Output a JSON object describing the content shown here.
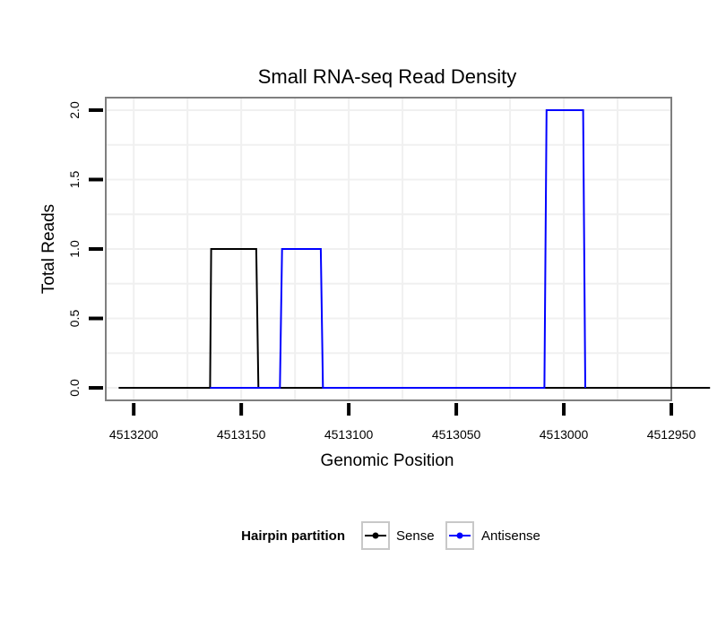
{
  "chart_data": {
    "type": "line",
    "title": "Small RNA-seq Read Density",
    "xlabel": "Genomic Position",
    "ylabel": "Total Reads",
    "xlim": [
      4513213,
      4512950
    ],
    "x_reversed": true,
    "ylim": [
      -0.09,
      2.09
    ],
    "x_ticks": [
      4513200,
      4513150,
      4513100,
      4513050,
      4513000,
      4512950
    ],
    "x_tick_labels": [
      "4513200",
      "4513150",
      "4513100",
      "4513050",
      "4513000",
      "4512950"
    ],
    "y_ticks": [
      0,
      0.5,
      1,
      1.5,
      2
    ],
    "y_tick_labels": [
      "0.0",
      "0.5",
      "1.0",
      "1.5",
      "2.0"
    ],
    "grid": true,
    "legend_position": "bottom",
    "legend_title": "Hairpin partition",
    "series": [
      {
        "name": "Sense",
        "color": "#000000",
        "x": [
          4513207,
          4513164.5,
          4513164,
          4513143,
          4513142,
          4512932
        ],
        "y": [
          0,
          0,
          1,
          1,
          0,
          0
        ]
      },
      {
        "name": "Antisense",
        "color": "#0000ff",
        "x": [
          4513164.5,
          4513132,
          4513131,
          4513113,
          4513112,
          4513009,
          4513008,
          4512991,
          4512990
        ],
        "y": [
          0,
          0,
          1,
          1,
          0,
          0,
          2,
          2,
          0
        ]
      }
    ]
  }
}
